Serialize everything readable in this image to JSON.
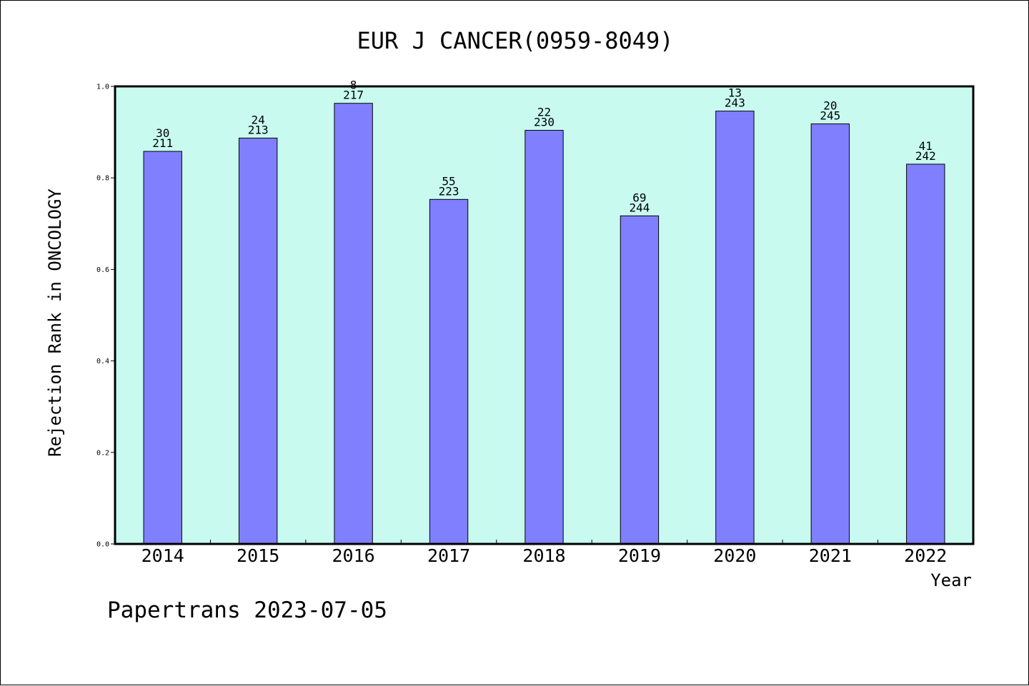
{
  "chart_data": {
    "type": "bar",
    "title": "EUR J CANCER(0959-8049)",
    "xlabel": "Year",
    "ylabel": "Rejection Rank in ONCOLOGY",
    "categories": [
      "2014",
      "2015",
      "2016",
      "2017",
      "2018",
      "2019",
      "2020",
      "2021",
      "2022"
    ],
    "values": [
      0.858,
      0.887,
      0.963,
      0.753,
      0.904,
      0.717,
      0.946,
      0.918,
      0.83
    ],
    "rank_labels": [
      "30",
      "24",
      "8",
      "55",
      "22",
      "69",
      "13",
      "20",
      "41"
    ],
    "total_labels": [
      "211",
      "213",
      "217",
      "223",
      "230",
      "244",
      "243",
      "245",
      "242"
    ],
    "ylim": [
      0,
      1.0
    ],
    "yticks": [
      "0.0",
      "0.2",
      "0.4",
      "0.6",
      "0.8",
      "1.0"
    ],
    "colors": {
      "bar": "#8080ff",
      "plot_background": "#c8faf0",
      "frame": "#000000"
    },
    "grid": false
  },
  "footer": {
    "text": "Papertrans 2023-07-05"
  }
}
